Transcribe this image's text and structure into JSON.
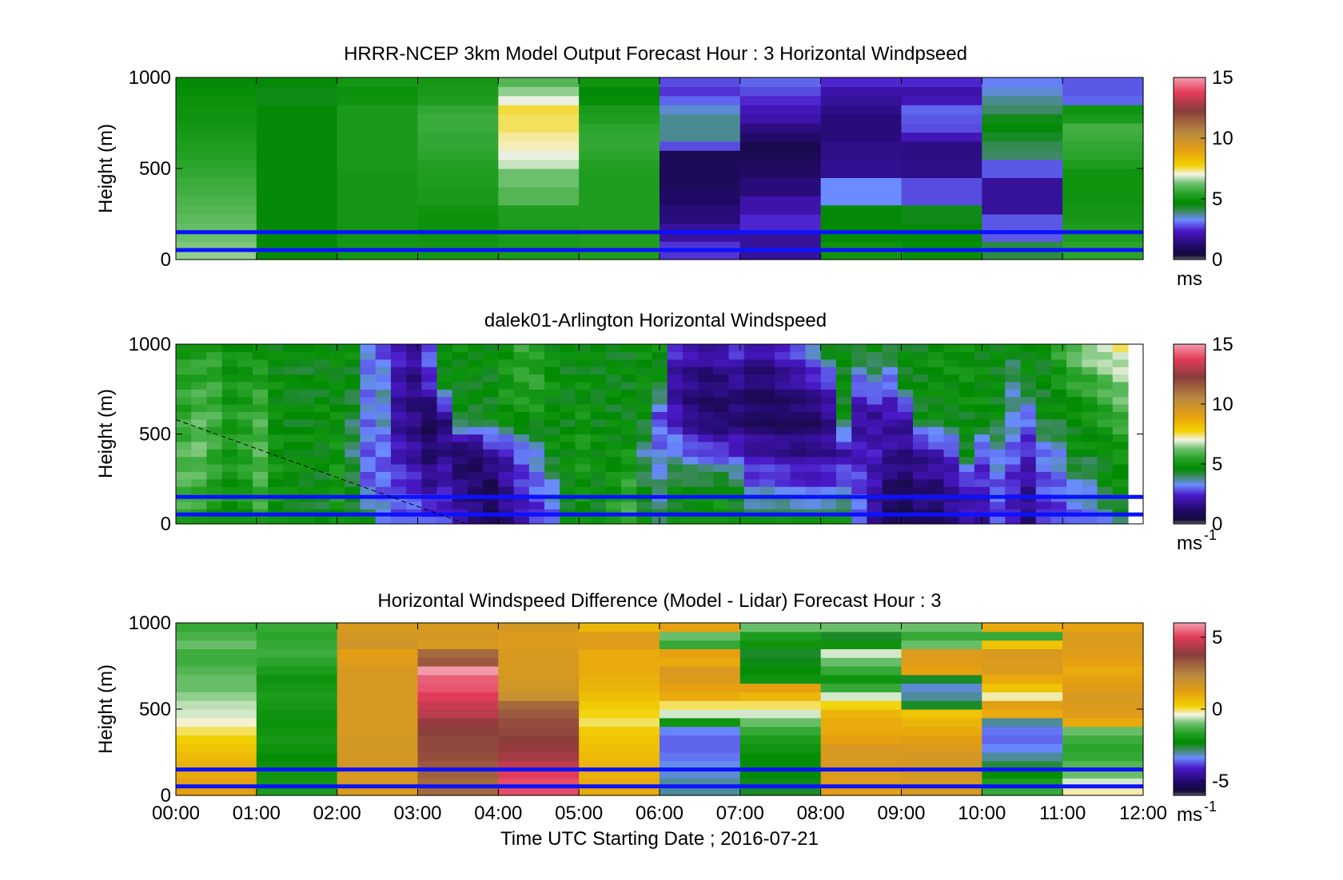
{
  "figure": {
    "xlabel": "Time UTC  Starting Date ; 2016-07-21"
  },
  "chart_data": [
    {
      "type": "heatmap",
      "title": "HRRR-NCEP 3km Model Output   Forecast Hour : 3 Horizontal Windpseed",
      "ylabel": "Height (m)",
      "ylim": [
        0,
        1000
      ],
      "yticks": [
        "0",
        "500",
        "1000"
      ],
      "colorbar": {
        "ticks": [
          "0",
          "5",
          "10",
          "15"
        ],
        "unit": "ms",
        "unit_sup": "",
        "range": [
          0,
          15
        ]
      },
      "columns": [
        [
          6.5,
          6.4,
          6.3,
          6.2,
          6.1,
          6.0,
          5.9,
          5.8,
          5.7,
          5.6,
          5.5,
          5.4,
          5.3,
          5.2,
          5.1,
          5.0,
          5.0,
          4.9,
          4.8,
          4.6
        ],
        [
          4.6,
          4.6,
          4.6,
          4.6,
          4.6,
          4.6,
          4.6,
          4.6,
          4.6,
          4.6,
          4.6,
          4.6,
          4.6,
          4.6,
          4.6,
          4.6,
          4.6,
          4.5,
          4.5,
          4.6
        ],
        [
          5.1,
          5.1,
          5.1,
          5.1,
          5.1,
          5.1,
          5.1,
          5.1,
          5.1,
          5.1,
          5.2,
          5.2,
          5.2,
          5.2,
          5.2,
          5.2,
          5.2,
          5.0,
          4.9,
          5.1
        ],
        [
          5.1,
          5.1,
          5.0,
          4.9,
          4.9,
          5.0,
          5.2,
          5.2,
          5.3,
          5.3,
          5.4,
          5.5,
          5.6,
          5.6,
          5.7,
          5.7,
          5.6,
          5.3,
          5.2,
          5.1
        ],
        [
          5.2,
          5.2,
          5.2,
          5.2,
          5.3,
          5.3,
          6.0,
          6.0,
          6.3,
          6.3,
          6.8,
          7.0,
          7.2,
          7.3,
          7.5,
          7.5,
          7.6,
          7.0,
          6.5,
          6.0
        ],
        [
          5.3,
          5.3,
          5.3,
          5.3,
          5.3,
          5.3,
          5.3,
          5.3,
          5.3,
          5.3,
          5.4,
          5.5,
          5.6,
          5.6,
          5.5,
          5.3,
          5.2,
          4.8,
          4.6,
          5.0
        ],
        [
          2.6,
          2.6,
          1.9,
          1.9,
          1.4,
          1.4,
          1.1,
          1.1,
          0.9,
          0.9,
          0.9,
          0.8,
          2.8,
          3.8,
          3.8,
          3.8,
          3.5,
          3.0,
          2.6,
          2.8
        ],
        [
          1.8,
          1.8,
          1.8,
          2.5,
          2.5,
          2.0,
          2.0,
          1.4,
          1.4,
          1.1,
          1.0,
          0.8,
          0.7,
          1.2,
          1.5,
          2.0,
          2.2,
          2.5,
          2.8,
          3.0
        ],
        [
          5.0,
          5.0,
          4.7,
          4.7,
          4.6,
          4.6,
          3.3,
          3.3,
          3.3,
          1.7,
          1.7,
          1.6,
          1.6,
          1.4,
          1.4,
          1.4,
          1.6,
          1.8,
          2.0,
          2.5
        ],
        [
          4.8,
          4.8,
          4.6,
          4.6,
          4.5,
          4.5,
          2.8,
          2.8,
          2.8,
          1.6,
          1.6,
          1.5,
          1.5,
          2.2,
          2.8,
          2.9,
          3.0,
          2.2,
          2.0,
          2.5
        ],
        [
          4.2,
          4.2,
          2.9,
          2.9,
          2.9,
          1.8,
          1.8,
          1.8,
          1.8,
          2.9,
          2.9,
          4.0,
          4.1,
          4.4,
          4.6,
          4.5,
          4.0,
          3.8,
          3.5,
          3.2
        ],
        [
          5.5,
          5.5,
          5.3,
          5.3,
          5.1,
          5.1,
          5.0,
          5.0,
          5.0,
          5.0,
          5.3,
          5.5,
          5.6,
          5.7,
          5.8,
          5.2,
          5.0,
          3.0,
          2.9,
          2.9
        ]
      ]
    },
    {
      "type": "heatmap",
      "title": "dalek01-Arlington  Horizontal Windspeed",
      "ylabel": "Height (m)",
      "ylim": [
        0,
        1000
      ],
      "yticks": [
        "0",
        "500",
        "1000"
      ],
      "colorbar": {
        "ticks": [
          "0",
          "5",
          "10",
          "15"
        ],
        "unit": "ms",
        "unit_sup": "-1",
        "range": [
          0,
          15
        ]
      },
      "annotation": "dashed line from 580 m at 00:00 to 0 m at about 03:35",
      "column_ends": [
        [
          5.5,
          6.0,
          6.0,
          5.5,
          5.5,
          5.2
        ],
        [
          5.4,
          5.8,
          6.2,
          6.0,
          5.6,
          5.3
        ],
        [
          5.0,
          5.4,
          5.6,
          5.8,
          5.6,
          5.4
        ],
        [
          4.8,
          5.0,
          5.2,
          5.2,
          5.0,
          4.8
        ],
        [
          5.0,
          5.2,
          5.5,
          5.4,
          5.2,
          5.0
        ],
        [
          5.5,
          5.8,
          6.0,
          5.8,
          5.4,
          5.0
        ],
        [
          4.8,
          5.0,
          5.0,
          4.8,
          4.8,
          4.6
        ],
        [
          4.6,
          4.8,
          4.8,
          4.6,
          4.6,
          4.6
        ],
        [
          4.6,
          4.6,
          4.8,
          4.6,
          4.5,
          4.6
        ],
        [
          4.4,
          4.6,
          4.6,
          4.8,
          4.6,
          4.6
        ],
        [
          5.0,
          5.2,
          5.0,
          4.8,
          4.6,
          4.8
        ],
        [
          4.6,
          4.4,
          4.0,
          4.2,
          4.5,
          4.8
        ],
        [
          4.5,
          3.0,
          3.0,
          3.2,
          3.2,
          3.2
        ],
        [
          3.5,
          3.0,
          3.0,
          3.5,
          3.5,
          2.8
        ],
        [
          3.0,
          2.8,
          2.2,
          1.8,
          2.0,
          2.4
        ],
        [
          3.2,
          2.5,
          1.8,
          1.5,
          1.5,
          2.0
        ],
        [
          3.0,
          1.8,
          1.2,
          0.8,
          2.5,
          3.0
        ],
        [
          2.6,
          2.2,
          1.6,
          1.5,
          4.8,
          4.6
        ],
        [
          2.0,
          1.5,
          1.0,
          4.6,
          4.6,
          4.8
        ],
        [
          1.6,
          1.2,
          1.0,
          4.5,
          4.6,
          4.8
        ],
        [
          1.0,
          0.8,
          2.0,
          4.6,
          4.5,
          4.8
        ],
        [
          1.5,
          1.8,
          2.2,
          5.0,
          5.2,
          5.0
        ],
        [
          2.0,
          2.5,
          3.0,
          5.0,
          5.4,
          5.5
        ],
        [
          2.5,
          3.0,
          3.5,
          5.0,
          5.5,
          5.2
        ],
        [
          3.0,
          3.5,
          4.8,
          4.6,
          5.0,
          4.8
        ],
        [
          4.6,
          4.6,
          4.8,
          4.6,
          4.6,
          4.6
        ],
        [
          4.8,
          5.0,
          5.2,
          5.0,
          4.8,
          4.6
        ],
        [
          4.6,
          4.6,
          4.8,
          4.6,
          4.6,
          4.6
        ],
        [
          5.5,
          5.0,
          4.8,
          4.6,
          4.6,
          4.6
        ],
        [
          5.8,
          5.5,
          5.0,
          4.6,
          4.6,
          4.6
        ],
        [
          4.6,
          4.4,
          3.8,
          4.6,
          4.8,
          4.8
        ],
        [
          4.0,
          3.8,
          3.2,
          2.8,
          4.6,
          4.8
        ],
        [
          4.6,
          4.6,
          3.5,
          2.2,
          1.8,
          2.5
        ],
        [
          4.8,
          4.6,
          3.0,
          1.5,
          1.5,
          2.2
        ],
        [
          5.0,
          4.6,
          2.8,
          1.2,
          1.2,
          2.0
        ],
        [
          5.2,
          4.8,
          2.6,
          1.0,
          1.4,
          2.2
        ],
        [
          4.6,
          4.5,
          2.5,
          1.2,
          1.6,
          2.6
        ],
        [
          4.6,
          3.0,
          2.0,
          1.0,
          1.2,
          2.0
        ],
        [
          4.6,
          3.2,
          2.0,
          0.9,
          1.2,
          2.0
        ],
        [
          4.8,
          3.0,
          1.8,
          0.9,
          1.6,
          2.5
        ],
        [
          4.6,
          2.8,
          1.6,
          1.0,
          1.8,
          2.8
        ],
        [
          4.6,
          2.6,
          1.8,
          1.0,
          2.2,
          3.5
        ],
        [
          4.7,
          2.8,
          1.8,
          1.6,
          2.5,
          4.6
        ],
        [
          4.8,
          3.2,
          2.0,
          4.6,
          4.6,
          4.6
        ],
        [
          3.2,
          2.8,
          2.2,
          1.8,
          3.0,
          4.6
        ],
        [
          1.8,
          2.0,
          2.2,
          1.8,
          3.5,
          4.6
        ],
        [
          1.0,
          1.2,
          1.8,
          2.0,
          3.0,
          4.5
        ],
        [
          0.8,
          1.0,
          1.6,
          2.0,
          4.6,
          4.6
        ],
        [
          1.2,
          1.5,
          1.8,
          4.5,
          4.6,
          4.6
        ],
        [
          1.0,
          1.4,
          2.2,
          4.6,
          4.8,
          5.0
        ],
        [
          1.6,
          1.8,
          2.6,
          4.6,
          4.8,
          5.0
        ],
        [
          2.0,
          2.2,
          4.6,
          4.6,
          5.0,
          4.8
        ],
        [
          1.8,
          2.4,
          2.8,
          4.8,
          4.8,
          4.6
        ],
        [
          2.8,
          3.0,
          3.5,
          4.6,
          4.6,
          4.6
        ],
        [
          2.2,
          2.4,
          3.0,
          3.6,
          3.8,
          4.6
        ],
        [
          1.5,
          1.8,
          2.4,
          3.0,
          4.6,
          4.8
        ],
        [
          2.4,
          2.8,
          3.2,
          4.6,
          4.5,
          4.6
        ],
        [
          2.6,
          3.0,
          3.5,
          4.6,
          5.0,
          5.5
        ],
        [
          3.0,
          3.5,
          4.8,
          4.6,
          5.5,
          6.2
        ],
        [
          3.2,
          3.6,
          4.6,
          5.0,
          5.6,
          6.8
        ],
        [
          3.5,
          4.6,
          4.6,
          5.4,
          6.0,
          7.0
        ],
        [
          4.0,
          4.8,
          5.0,
          5.8,
          6.4,
          7.2
        ]
      ]
    },
    {
      "type": "heatmap",
      "title": "Horizontal Windspeed Difference (Model - Lidar) Forecast Hour : 3",
      "ylabel": "Height (m)",
      "ylim": [
        0,
        1000
      ],
      "yticks": [
        "0",
        "500",
        "1000"
      ],
      "xticks": [
        "00:00",
        "01:00",
        "02:00",
        "03:00",
        "04:00",
        "05:00",
        "06:00",
        "07:00",
        "08:00",
        "09:00",
        "10:00",
        "11:00",
        "12:00"
      ],
      "colorbar": {
        "ticks": [
          "-5",
          "0",
          "5"
        ],
        "unit": "ms",
        "unit_sup": "-1",
        "range": [
          -6,
          6
        ]
      },
      "columns": [
        [
          1.2,
          1.2,
          1.0,
          0.9,
          0.7,
          0.5,
          0.3,
          0.0,
          -0.3,
          -0.5,
          -0.6,
          -0.8,
          -1.0,
          -1.0,
          -1.2,
          -1.4,
          -1.4,
          -1.0,
          -1.3,
          -1.5
        ],
        [
          -1.8,
          -1.9,
          -2.0,
          -2.1,
          -2.2,
          -2.0,
          -1.9,
          -2.0,
          -2.1,
          -2.0,
          -1.9,
          -1.8,
          -1.9,
          -2.0,
          -1.8,
          -1.6,
          -1.4,
          -1.5,
          -1.6,
          -1.5
        ],
        [
          1.5,
          1.6,
          1.6,
          1.7,
          1.7,
          1.7,
          1.7,
          1.6,
          1.6,
          1.6,
          1.6,
          1.6,
          1.6,
          1.6,
          1.6,
          1.4,
          1.3,
          1.8,
          1.7,
          1.6
        ],
        [
          3.0,
          3.0,
          3.2,
          3.3,
          3.5,
          3.6,
          3.6,
          3.8,
          4.0,
          4.5,
          4.7,
          5.0,
          5.3,
          5.4,
          6.0,
          3.3,
          3.0,
          1.6,
          1.7,
          1.6
        ],
        [
          5.2,
          5.2,
          5.0,
          4.6,
          4.2,
          4.0,
          3.8,
          3.6,
          3.5,
          3.3,
          3.0,
          2.0,
          1.8,
          1.7,
          1.6,
          1.6,
          1.6,
          1.5,
          1.5,
          1.7
        ],
        [
          1.0,
          1.0,
          0.9,
          0.8,
          0.7,
          0.6,
          0.5,
          0.4,
          0.0,
          0.2,
          0.4,
          0.6,
          0.8,
          0.9,
          1.0,
          1.0,
          1.0,
          1.4,
          1.4,
          0.8
        ],
        [
          -3.0,
          -3.0,
          -3.2,
          -3.3,
          -3.5,
          -3.6,
          -3.6,
          -3.4,
          -2.0,
          -0.5,
          0.0,
          1.0,
          1.2,
          1.5,
          1.6,
          1.0,
          1.2,
          -1.5,
          -1.0,
          1.2
        ],
        [
          -2.5,
          -2.4,
          -2.3,
          -2.2,
          -2.2,
          -2.0,
          -1.8,
          -1.5,
          -1.0,
          -0.5,
          0.0,
          0.8,
          1.2,
          -2.0,
          -2.2,
          -2.4,
          -2.5,
          -2.0,
          -1.8,
          -1.0
        ],
        [
          1.3,
          1.4,
          1.5,
          1.6,
          1.6,
          1.6,
          1.2,
          1.0,
          1.0,
          0.8,
          0.2,
          -0.5,
          -1.5,
          -2.0,
          -1.5,
          -1.0,
          -0.5,
          -2.0,
          -2.5,
          -1.0
        ],
        [
          1.6,
          1.6,
          1.7,
          1.7,
          1.7,
          1.5,
          1.3,
          1.0,
          0.8,
          0.5,
          -2.5,
          -3.0,
          -3.2,
          -2.5,
          1.2,
          1.4,
          1.5,
          -1.0,
          -1.5,
          -1.0
        ],
        [
          -1.5,
          -1.8,
          -2.2,
          -2.6,
          -3.0,
          -3.4,
          -3.6,
          -3.5,
          -3.0,
          1.0,
          1.3,
          -0.2,
          0.5,
          1.0,
          1.5,
          1.5,
          1.6,
          0.5,
          -1.5,
          1.0
        ],
        [
          -0.2,
          -0.5,
          -1.0,
          -1.2,
          -1.5,
          -1.6,
          -1.4,
          -1.0,
          1.0,
          1.4,
          1.5,
          1.6,
          1.4,
          1.2,
          1.0,
          1.2,
          1.4,
          1.5,
          1.5,
          1.2
        ]
      ]
    }
  ]
}
